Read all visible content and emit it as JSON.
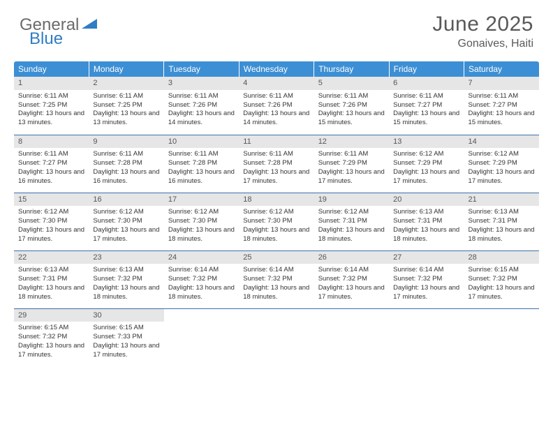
{
  "brand": {
    "part1": "General",
    "part2": "Blue"
  },
  "header": {
    "title": "June 2025",
    "location": "Gonaives, Haiti"
  },
  "colors": {
    "header_bg": "#3c8fd4",
    "header_text": "#ffffff",
    "daynum_bg": "#e6e6e6",
    "row_border": "#3c6fa8",
    "title_color": "#595959",
    "body_text": "#333333"
  },
  "weekdays": [
    "Sunday",
    "Monday",
    "Tuesday",
    "Wednesday",
    "Thursday",
    "Friday",
    "Saturday"
  ],
  "weeks": [
    [
      {
        "day": "1",
        "sunrise": "Sunrise: 6:11 AM",
        "sunset": "Sunset: 7:25 PM",
        "daylight": "Daylight: 13 hours and 13 minutes."
      },
      {
        "day": "2",
        "sunrise": "Sunrise: 6:11 AM",
        "sunset": "Sunset: 7:25 PM",
        "daylight": "Daylight: 13 hours and 13 minutes."
      },
      {
        "day": "3",
        "sunrise": "Sunrise: 6:11 AM",
        "sunset": "Sunset: 7:26 PM",
        "daylight": "Daylight: 13 hours and 14 minutes."
      },
      {
        "day": "4",
        "sunrise": "Sunrise: 6:11 AM",
        "sunset": "Sunset: 7:26 PM",
        "daylight": "Daylight: 13 hours and 14 minutes."
      },
      {
        "day": "5",
        "sunrise": "Sunrise: 6:11 AM",
        "sunset": "Sunset: 7:26 PM",
        "daylight": "Daylight: 13 hours and 15 minutes."
      },
      {
        "day": "6",
        "sunrise": "Sunrise: 6:11 AM",
        "sunset": "Sunset: 7:27 PM",
        "daylight": "Daylight: 13 hours and 15 minutes."
      },
      {
        "day": "7",
        "sunrise": "Sunrise: 6:11 AM",
        "sunset": "Sunset: 7:27 PM",
        "daylight": "Daylight: 13 hours and 15 minutes."
      }
    ],
    [
      {
        "day": "8",
        "sunrise": "Sunrise: 6:11 AM",
        "sunset": "Sunset: 7:27 PM",
        "daylight": "Daylight: 13 hours and 16 minutes."
      },
      {
        "day": "9",
        "sunrise": "Sunrise: 6:11 AM",
        "sunset": "Sunset: 7:28 PM",
        "daylight": "Daylight: 13 hours and 16 minutes."
      },
      {
        "day": "10",
        "sunrise": "Sunrise: 6:11 AM",
        "sunset": "Sunset: 7:28 PM",
        "daylight": "Daylight: 13 hours and 16 minutes."
      },
      {
        "day": "11",
        "sunrise": "Sunrise: 6:11 AM",
        "sunset": "Sunset: 7:28 PM",
        "daylight": "Daylight: 13 hours and 17 minutes."
      },
      {
        "day": "12",
        "sunrise": "Sunrise: 6:11 AM",
        "sunset": "Sunset: 7:29 PM",
        "daylight": "Daylight: 13 hours and 17 minutes."
      },
      {
        "day": "13",
        "sunrise": "Sunrise: 6:12 AM",
        "sunset": "Sunset: 7:29 PM",
        "daylight": "Daylight: 13 hours and 17 minutes."
      },
      {
        "day": "14",
        "sunrise": "Sunrise: 6:12 AM",
        "sunset": "Sunset: 7:29 PM",
        "daylight": "Daylight: 13 hours and 17 minutes."
      }
    ],
    [
      {
        "day": "15",
        "sunrise": "Sunrise: 6:12 AM",
        "sunset": "Sunset: 7:30 PM",
        "daylight": "Daylight: 13 hours and 17 minutes."
      },
      {
        "day": "16",
        "sunrise": "Sunrise: 6:12 AM",
        "sunset": "Sunset: 7:30 PM",
        "daylight": "Daylight: 13 hours and 17 minutes."
      },
      {
        "day": "17",
        "sunrise": "Sunrise: 6:12 AM",
        "sunset": "Sunset: 7:30 PM",
        "daylight": "Daylight: 13 hours and 18 minutes."
      },
      {
        "day": "18",
        "sunrise": "Sunrise: 6:12 AM",
        "sunset": "Sunset: 7:30 PM",
        "daylight": "Daylight: 13 hours and 18 minutes."
      },
      {
        "day": "19",
        "sunrise": "Sunrise: 6:12 AM",
        "sunset": "Sunset: 7:31 PM",
        "daylight": "Daylight: 13 hours and 18 minutes."
      },
      {
        "day": "20",
        "sunrise": "Sunrise: 6:13 AM",
        "sunset": "Sunset: 7:31 PM",
        "daylight": "Daylight: 13 hours and 18 minutes."
      },
      {
        "day": "21",
        "sunrise": "Sunrise: 6:13 AM",
        "sunset": "Sunset: 7:31 PM",
        "daylight": "Daylight: 13 hours and 18 minutes."
      }
    ],
    [
      {
        "day": "22",
        "sunrise": "Sunrise: 6:13 AM",
        "sunset": "Sunset: 7:31 PM",
        "daylight": "Daylight: 13 hours and 18 minutes."
      },
      {
        "day": "23",
        "sunrise": "Sunrise: 6:13 AM",
        "sunset": "Sunset: 7:32 PM",
        "daylight": "Daylight: 13 hours and 18 minutes."
      },
      {
        "day": "24",
        "sunrise": "Sunrise: 6:14 AM",
        "sunset": "Sunset: 7:32 PM",
        "daylight": "Daylight: 13 hours and 18 minutes."
      },
      {
        "day": "25",
        "sunrise": "Sunrise: 6:14 AM",
        "sunset": "Sunset: 7:32 PM",
        "daylight": "Daylight: 13 hours and 18 minutes."
      },
      {
        "day": "26",
        "sunrise": "Sunrise: 6:14 AM",
        "sunset": "Sunset: 7:32 PM",
        "daylight": "Daylight: 13 hours and 17 minutes."
      },
      {
        "day": "27",
        "sunrise": "Sunrise: 6:14 AM",
        "sunset": "Sunset: 7:32 PM",
        "daylight": "Daylight: 13 hours and 17 minutes."
      },
      {
        "day": "28",
        "sunrise": "Sunrise: 6:15 AM",
        "sunset": "Sunset: 7:32 PM",
        "daylight": "Daylight: 13 hours and 17 minutes."
      }
    ],
    [
      {
        "day": "29",
        "sunrise": "Sunrise: 6:15 AM",
        "sunset": "Sunset: 7:32 PM",
        "daylight": "Daylight: 13 hours and 17 minutes."
      },
      {
        "day": "30",
        "sunrise": "Sunrise: 6:15 AM",
        "sunset": "Sunset: 7:33 PM",
        "daylight": "Daylight: 13 hours and 17 minutes."
      },
      null,
      null,
      null,
      null,
      null
    ]
  ]
}
